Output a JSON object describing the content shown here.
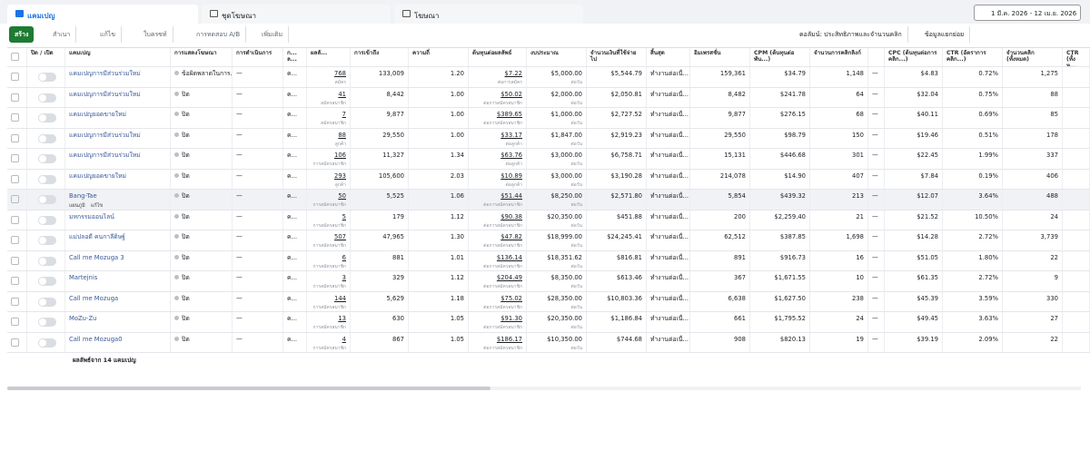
{
  "tabs": [
    "แคมเปญ",
    "ชุดโฆษณา",
    "โฆษณา"
  ],
  "date_range": "1 มี.ค. 2026 - 12 เม.ย. 2026",
  "toolbar": {
    "create": "สร้าง",
    "duplicate": "สำเนา",
    "edit": "แก้ไข",
    "review": "ใบครซท์",
    "ab_test": "การทดสอบ A/B",
    "more": "เพิ่มเติม",
    "columns": "คอลัมน์: ประสิทธิภาพและจำนวนคลิก",
    "breakdown": "ข้อมูลแยกย่อย"
  },
  "table": {
    "columns": [
      "ปิด / เปิด",
      "แคมเปญ",
      "การแสดงโฆษณา",
      "การดำเนินการ",
      "ก... ล...",
      "ผลลั...",
      "การเข้าถึง",
      "ความถี่",
      "ต้นทุนต่อผลลัพธ์",
      "งบประมาณ",
      "จำนวนเงินที่ใช้จ่ายไป",
      "สิ้นสุด",
      "อิมเพรสชั่น",
      "CPM (ต้นทุนต่อพัน...)",
      "จำนวนการคลิกลิงก์",
      "CPC (ต้นทุนต่อการคลิก...)",
      "CTR (อัตราการคลิก...)",
      "จำนวนคลิก (ทั้งหมด)",
      "CTR (ทั้งห..."
    ],
    "rows": [
      {
        "name": "แคมเปญการมีส่วนร่วมใหม่",
        "delivery": "ข้อผิดพลาดในการ...",
        "actions": "—",
        "attribution": "ค...",
        "result": "768",
        "result_sub": "สมัคร",
        "reach": "133,009",
        "frequency": "1.20",
        "cost_per_result": "$7.22",
        "cost_sub": "ต่อการสมัคร",
        "budget": "$5,000.00",
        "budget_sub": "ต่อวัน",
        "amount_spent": "$5,544.79",
        "ends": "ทำงานต่อเนื่...",
        "impressions": "159,361",
        "cpm": "$34.79",
        "link_clicks": "1,148",
        "link_dash": "—",
        "cpc": "$4.83",
        "ctr": "0.72%",
        "clicks_all": "1,275",
        "ctr_all": ""
      },
      {
        "name": "แคมเปญการมีส่วนร่วมใหม่",
        "delivery": "ปิด",
        "actions": "—",
        "attribution": "ค...",
        "result": "41",
        "result_sub": "สมัครสมาชิก",
        "reach": "8,442",
        "frequency": "1.00",
        "cost_per_result": "$50.02",
        "cost_sub": "ต่อการสมัครสมาชิก",
        "budget": "$2,000.00",
        "budget_sub": "ต่อวัน",
        "amount_spent": "$2,050.81",
        "ends": "ทำงานต่อเนื่...",
        "impressions": "8,482",
        "cpm": "$241.78",
        "link_clicks": "64",
        "link_dash": "—",
        "cpc": "$32.04",
        "ctr": "0.75%",
        "clicks_all": "88",
        "ctr_all": ""
      },
      {
        "name": "แคมเปญยอดขายใหม่",
        "delivery": "ปิด",
        "actions": "—",
        "attribution": "ค...",
        "result": "7",
        "result_sub": "สมัครสมาชิก",
        "reach": "9,877",
        "frequency": "1.00",
        "cost_per_result": "$389.65",
        "cost_sub": "ต่อการสมัครสมาชิก",
        "budget": "$1,000.00",
        "budget_sub": "ต่อวัน",
        "amount_spent": "$2,727.52",
        "ends": "ทำงานต่อเนื่...",
        "impressions": "9,877",
        "cpm": "$276.15",
        "link_clicks": "68",
        "link_dash": "—",
        "cpc": "$40.11",
        "ctr": "0.69%",
        "clicks_all": "85",
        "ctr_all": ""
      },
      {
        "name": "แคมเปญการมีส่วนร่วมใหม่",
        "delivery": "ปิด",
        "actions": "—",
        "attribution": "ค...",
        "result": "88",
        "result_sub": "ลูกค้า",
        "reach": "29,550",
        "frequency": "1.00",
        "cost_per_result": "$33.17",
        "cost_sub": "ต่อลูกค้า",
        "budget": "$1,847.00",
        "budget_sub": "ต่อวัน",
        "amount_spent": "$2,919.23",
        "ends": "ทำงานต่อเนื่...",
        "impressions": "29,550",
        "cpm": "$98.79",
        "link_clicks": "150",
        "link_dash": "—",
        "cpc": "$19.46",
        "ctr": "0.51%",
        "clicks_all": "178",
        "ctr_all": ""
      },
      {
        "name": "แคมเปญการมีส่วนร่วมใหม่",
        "delivery": "ปิด",
        "actions": "—",
        "attribution": "ค...",
        "result": "106",
        "result_sub": "การสมัครสมาชิก",
        "reach": "11,327",
        "frequency": "1.34",
        "cost_per_result": "$63.76",
        "cost_sub": "ต่อลูกค้า",
        "budget": "$3,000.00",
        "budget_sub": "ต่อวัน",
        "amount_spent": "$6,758.71",
        "ends": "ทำงานต่อเนื่...",
        "impressions": "15,131",
        "cpm": "$446.68",
        "link_clicks": "301",
        "link_dash": "—",
        "cpc": "$22.45",
        "ctr": "1.99%",
        "clicks_all": "337",
        "ctr_all": ""
      },
      {
        "name": "แคมเปญยอดขายใหม่",
        "delivery": "ปิด",
        "actions": "—",
        "attribution": "ค...",
        "result": "293",
        "result_sub": "ลูกค้า",
        "reach": "105,600",
        "frequency": "2.03",
        "cost_per_result": "$10.89",
        "cost_sub": "ต่อลูกค้า",
        "budget": "$3,000.00",
        "budget_sub": "ต่อวัน",
        "amount_spent": "$3,190.28",
        "ends": "ทำงานต่อเนื่...",
        "impressions": "214,078",
        "cpm": "$14.90",
        "link_clicks": "407",
        "link_dash": "—",
        "cpc": "$7.84",
        "ctr": "0.19%",
        "clicks_all": "406",
        "ctr_all": ""
      },
      {
        "name": "Bang-Tae",
        "row_actions": [
          "แผนภูมิ",
          "แก้ไข"
        ],
        "delivery": "ปิด",
        "actions": "—",
        "attribution": "ค...",
        "result": "50",
        "result_sub": "การสมัครสมาชิก",
        "reach": "5,525",
        "frequency": "1.06",
        "cost_per_result": "$51.44",
        "cost_sub": "ต่อการสมัครสมาชิก",
        "budget": "$8,250.00",
        "budget_sub": "ต่อวัน",
        "amount_spent": "$2,571.80",
        "ends": "ทำงานต่อเนื่...",
        "impressions": "5,854",
        "cpm": "$439.32",
        "link_clicks": "213",
        "link_dash": "—",
        "cpc": "$12.07",
        "ctr": "3.64%",
        "clicks_all": "488",
        "ctr_all": ""
      },
      {
        "name": "มหกรรมออนไลน์",
        "delivery": "ปิด",
        "actions": "—",
        "attribution": "ค...",
        "result": "5",
        "result_sub": "การสมัครสมาชิก",
        "reach": "179",
        "frequency": "1.12",
        "cost_per_result": "$90.38",
        "cost_sub": "ต่อการสมัครสมาชิก",
        "budget": "$20,350.00",
        "budget_sub": "ต่อวัน",
        "amount_spent": "$451.88",
        "ends": "ทำงานต่อเนื่...",
        "impressions": "200",
        "cpm": "$2,259.40",
        "link_clicks": "21",
        "link_dash": "—",
        "cpc": "$21.52",
        "ctr": "10.50%",
        "clicks_all": "24",
        "ctr_all": ""
      },
      {
        "name": "แม่ปลอดี คนกาลีดิษฐ์",
        "delivery": "ปิด",
        "actions": "—",
        "attribution": "ค...",
        "result": "507",
        "result_sub": "การสมัครสมาชิก",
        "reach": "47,965",
        "frequency": "1.30",
        "cost_per_result": "$47.82",
        "cost_sub": "ต่อการสมัครสมาชิก",
        "budget": "$18,999.00",
        "budget_sub": "ต่อวัน",
        "amount_spent": "$24,245.41",
        "ends": "ทำงานต่อเนื่...",
        "impressions": "62,512",
        "cpm": "$387.85",
        "link_clicks": "1,698",
        "link_dash": "—",
        "cpc": "$14.28",
        "ctr": "2.72%",
        "clicks_all": "3,739",
        "ctr_all": ""
      },
      {
        "name": "Call me Mozuga 3",
        "delivery": "ปิด",
        "actions": "—",
        "attribution": "ค...",
        "result": "6",
        "result_sub": "การสมัครสมาชิก",
        "reach": "881",
        "frequency": "1.01",
        "cost_per_result": "$136.14",
        "cost_sub": "ต่อการสมัครสมาชิก",
        "budget": "$18,351.62",
        "budget_sub": "ต่อวัน",
        "amount_spent": "$816.81",
        "ends": "ทำงานต่อเนื่...",
        "impressions": "891",
        "cpm": "$916.73",
        "link_clicks": "16",
        "link_dash": "—",
        "cpc": "$51.05",
        "ctr": "1.80%",
        "clicks_all": "22",
        "ctr_all": ""
      },
      {
        "name": "Martejnis",
        "delivery": "ปิด",
        "actions": "—",
        "attribution": "ค...",
        "result": "3",
        "result_sub": "การสมัครสมาชิก",
        "reach": "329",
        "frequency": "1.12",
        "cost_per_result": "$204.49",
        "cost_sub": "ต่อการสมัครสมาชิก",
        "budget": "$8,350.00",
        "budget_sub": "ต่อวัน",
        "amount_spent": "$613.46",
        "ends": "ทำงานต่อเนื่...",
        "impressions": "367",
        "cpm": "$1,671.55",
        "link_clicks": "10",
        "link_dash": "—",
        "cpc": "$61.35",
        "ctr": "2.72%",
        "clicks_all": "9",
        "ctr_all": ""
      },
      {
        "name": "Call me Mozuga",
        "delivery": "ปิด",
        "actions": "—",
        "attribution": "ค...",
        "result": "144",
        "result_sub": "การสมัครสมาชิก",
        "reach": "5,629",
        "frequency": "1.18",
        "cost_per_result": "$75.02",
        "cost_sub": "ต่อการสมัครสมาชิก",
        "budget": "$28,350.00",
        "budget_sub": "ต่อวัน",
        "amount_spent": "$10,803.36",
        "ends": "ทำงานต่อเนื่...",
        "impressions": "6,638",
        "cpm": "$1,627.50",
        "link_clicks": "238",
        "link_dash": "—",
        "cpc": "$45.39",
        "ctr": "3.59%",
        "clicks_all": "330",
        "ctr_all": ""
      },
      {
        "name": "MoZu-Zu",
        "delivery": "ปิด",
        "actions": "—",
        "attribution": "ค...",
        "result": "13",
        "result_sub": "การสมัครสมาชิก",
        "reach": "630",
        "frequency": "1.05",
        "cost_per_result": "$91.30",
        "cost_sub": "ต่อการสมัครสมาชิก",
        "budget": "$20,350.00",
        "budget_sub": "ต่อวัน",
        "amount_spent": "$1,186.84",
        "ends": "ทำงานต่อเนื่...",
        "impressions": "661",
        "cpm": "$1,795.52",
        "link_clicks": "24",
        "link_dash": "—",
        "cpc": "$49.45",
        "ctr": "3.63%",
        "clicks_all": "27",
        "ctr_all": ""
      },
      {
        "name": "Call me Mozuga0",
        "delivery": "ปิด",
        "actions": "—",
        "attribution": "ค...",
        "result": "4",
        "result_sub": "การสมัครสมาชิก",
        "reach": "867",
        "frequency": "1.05",
        "cost_per_result": "$186.17",
        "cost_sub": "ต่อการสมัครสมาชิก",
        "budget": "$10,350.00",
        "budget_sub": "ต่อวัน",
        "amount_spent": "$744.68",
        "ends": "ทำงานต่อเนื่...",
        "impressions": "908",
        "cpm": "$820.13",
        "link_clicks": "19",
        "link_dash": "—",
        "cpc": "$39.19",
        "ctr": "2.09%",
        "clicks_all": "22",
        "ctr_all": ""
      }
    ],
    "footer": "ผลลัพธ์จาก 14 แคมเปญ"
  }
}
